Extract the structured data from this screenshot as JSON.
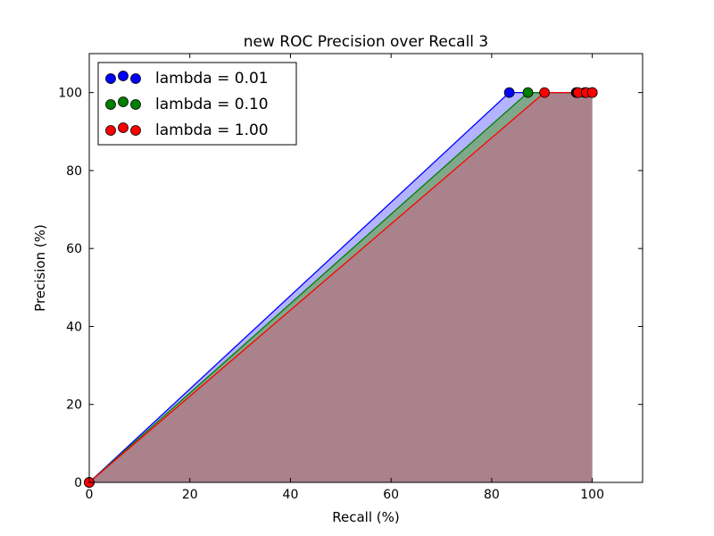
{
  "chart_data": {
    "type": "area",
    "title": "new ROC Precision over Recall 3",
    "xlabel": "Recall (%)",
    "ylabel": "Precision (%)",
    "xlim": [
      0,
      110
    ],
    "ylim": [
      0,
      110
    ],
    "xticks": [
      0,
      20,
      40,
      60,
      80,
      100
    ],
    "yticks": [
      0,
      20,
      40,
      60,
      80,
      100
    ],
    "grid": false,
    "legend_position": "top-left",
    "series": [
      {
        "name": "lambda = 0.01",
        "color": "#0000ff",
        "fill": "#b3b3ff",
        "points": [
          [
            0,
            0
          ],
          [
            83.5,
            100
          ],
          [
            96.8,
            100
          ],
          [
            98.5,
            100
          ],
          [
            100,
            100
          ]
        ]
      },
      {
        "name": "lambda = 0.10",
        "color": "#007f00",
        "fill": "#7fa88a",
        "points": [
          [
            0,
            0
          ],
          [
            87.2,
            100
          ],
          [
            97.0,
            100
          ],
          [
            98.7,
            100
          ],
          [
            100,
            100
          ]
        ]
      },
      {
        "name": "lambda = 1.00",
        "color": "#ff0000",
        "fill": "#a9828c",
        "points": [
          [
            0,
            0
          ],
          [
            90.5,
            100
          ],
          [
            97.2,
            100
          ],
          [
            98.8,
            100
          ],
          [
            100,
            100
          ]
        ]
      }
    ]
  }
}
